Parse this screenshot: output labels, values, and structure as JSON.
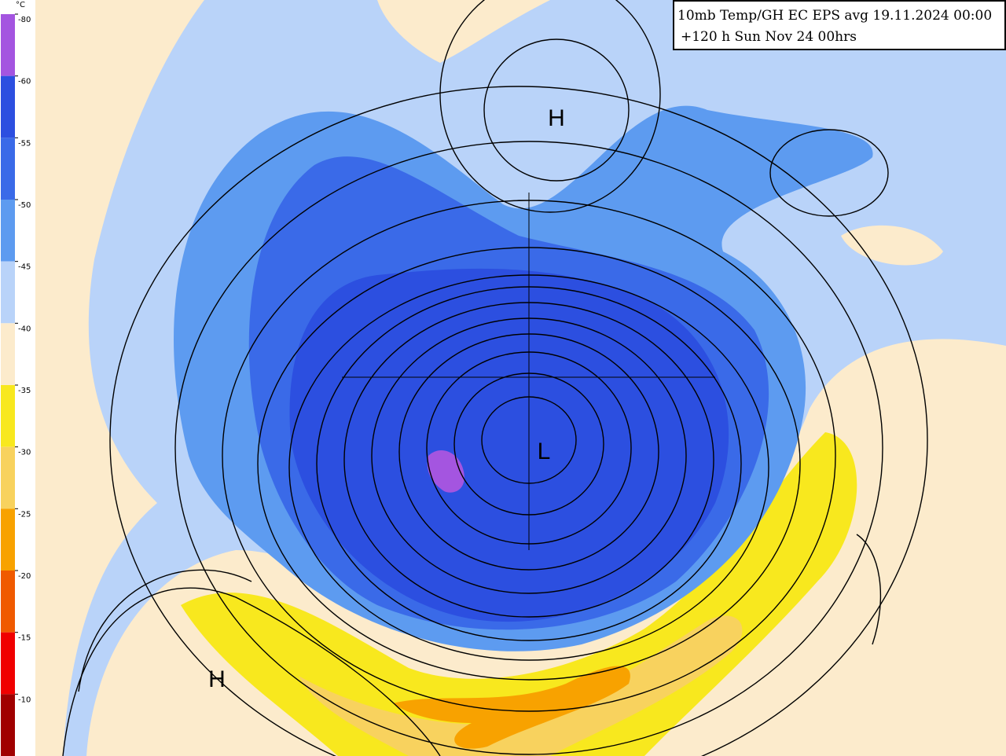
{
  "title": {
    "line1": "10mb Temp/GH EC EPS avg 19.11.2024 00:00",
    "line2": "+120 h Sun Nov 24 00hrs"
  },
  "legend": {
    "unit": "°C",
    "items": [
      {
        "label": "-80",
        "color": "#a455e0"
      },
      {
        "label": "-60",
        "color": "#2c4fe0"
      },
      {
        "label": "-55",
        "color": "#3a6ae8"
      },
      {
        "label": "-50",
        "color": "#5d9bf0"
      },
      {
        "label": "-45",
        "color": "#b9d3f9"
      },
      {
        "label": "-40",
        "color": "#fcebcc"
      },
      {
        "label": "-35",
        "color": "#f8e81e"
      },
      {
        "label": "-30",
        "color": "#f8d25e"
      },
      {
        "label": "-25",
        "color": "#f8a200"
      },
      {
        "label": "-20",
        "color": "#f05a00"
      },
      {
        "label": "-15",
        "color": "#f00000"
      },
      {
        "label": "-10",
        "color": "#a00000"
      }
    ]
  },
  "labels": [
    {
      "text": "H"
    },
    {
      "text": "L"
    },
    {
      "text": "H"
    }
  ]
}
